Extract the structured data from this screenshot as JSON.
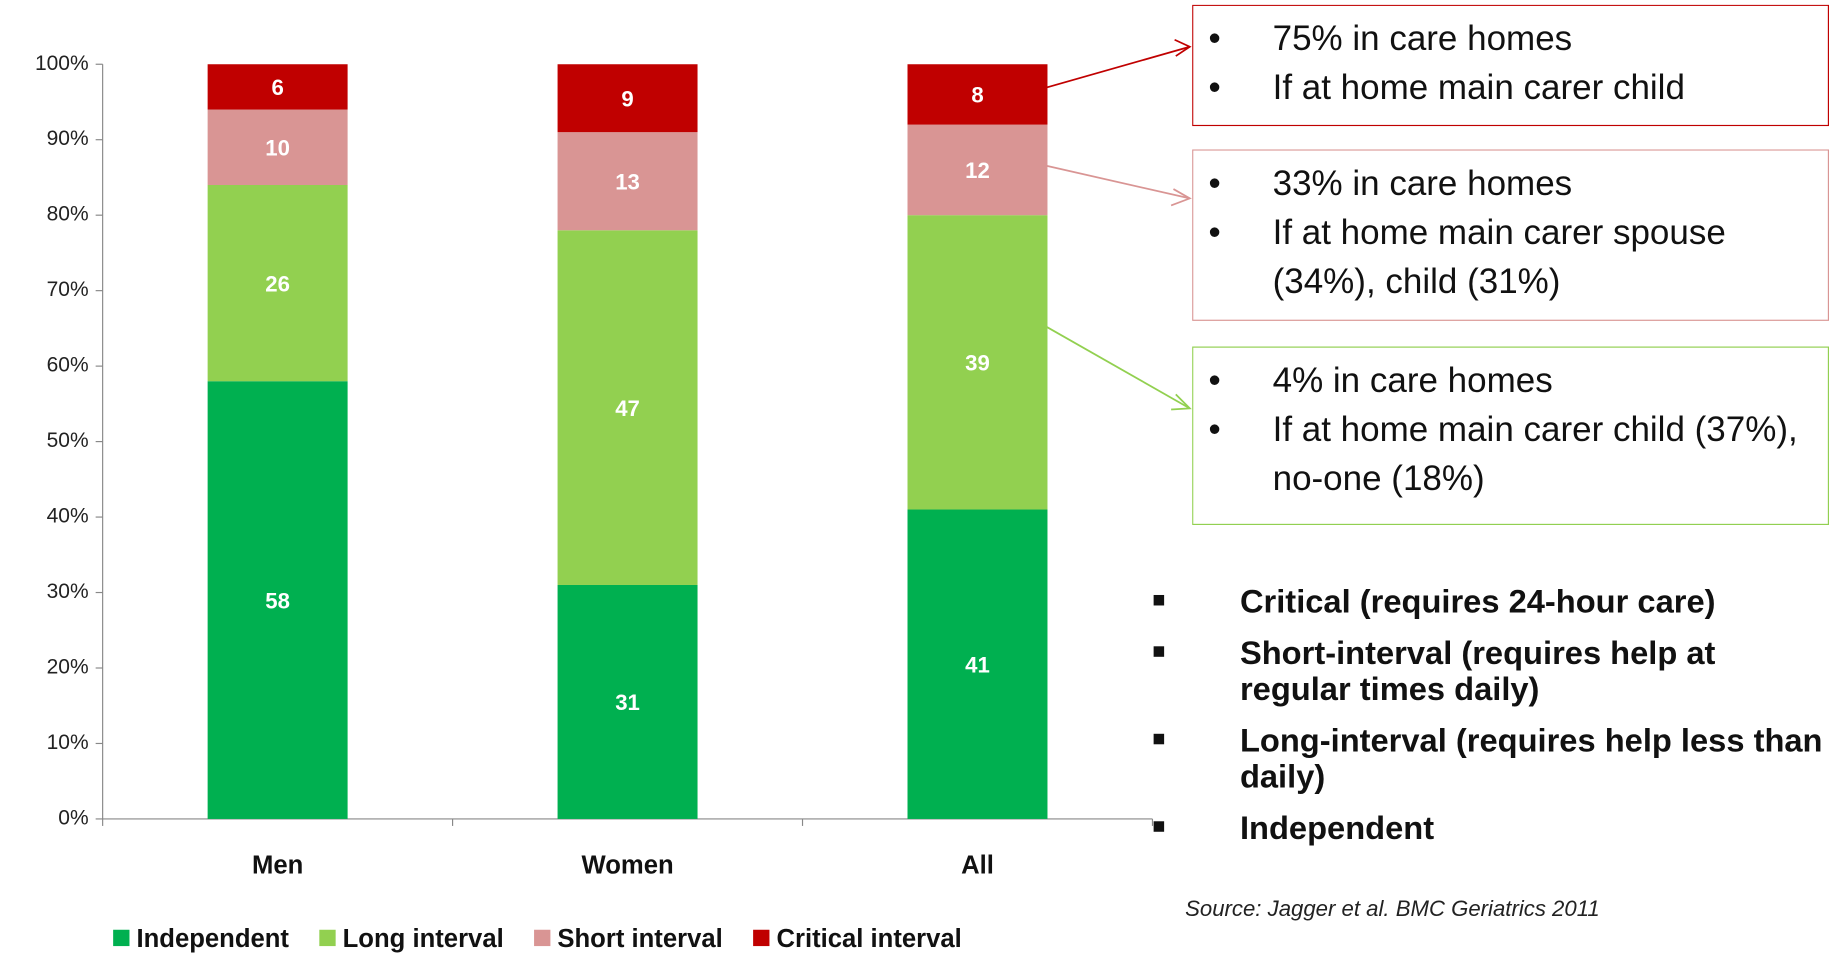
{
  "chart_data": {
    "type": "bar",
    "stacked": true,
    "categories": [
      "Men",
      "Women",
      "All"
    ],
    "series": [
      {
        "name": "Independent",
        "color": "#00b050",
        "values": [
          58,
          31,
          41
        ]
      },
      {
        "name": "Long interval",
        "color": "#92d050",
        "values": [
          26,
          47,
          39
        ]
      },
      {
        "name": "Short interval",
        "color": "#d99594",
        "values": [
          10,
          13,
          12
        ]
      },
      {
        "name": "Critical interval",
        "color": "#c00000",
        "values": [
          6,
          9,
          8
        ]
      }
    ],
    "ylim": [
      0,
      100
    ],
    "yticks": [
      {
        "value": 0,
        "label": "0%"
      },
      {
        "value": 10,
        "label": "10%"
      },
      {
        "value": 20,
        "label": "20%"
      },
      {
        "value": 30,
        "label": "30%"
      },
      {
        "value": 40,
        "label": "40%"
      },
      {
        "value": 50,
        "label": "50%"
      },
      {
        "value": 60,
        "label": "60%"
      },
      {
        "value": 70,
        "label": "70%"
      },
      {
        "value": 80,
        "label": "80%"
      },
      {
        "value": 90,
        "label": "90%"
      },
      {
        "value": 100,
        "label": "100%"
      }
    ],
    "grid": false,
    "legend": "bottom"
  },
  "annotations": [
    {
      "color": "#c00000",
      "lines": [
        "75% in care homes",
        "If at home main carer child"
      ]
    },
    {
      "color": "#d99594",
      "lines": [
        "33% in care homes",
        "If at home main carer spouse (34%), child (31%)"
      ]
    },
    {
      "color": "#92d050",
      "lines": [
        "4% in care homes",
        "If at home main carer child (37%), no-one (18%)"
      ]
    }
  ],
  "definitions": [
    "Critical (requires 24-hour care)",
    "Short-interval  (requires help at regular times daily)",
    "Long-interval  (requires help less than daily)",
    "Independent"
  ],
  "source": "Source: Jagger et al. BMC Geriatrics 2011"
}
